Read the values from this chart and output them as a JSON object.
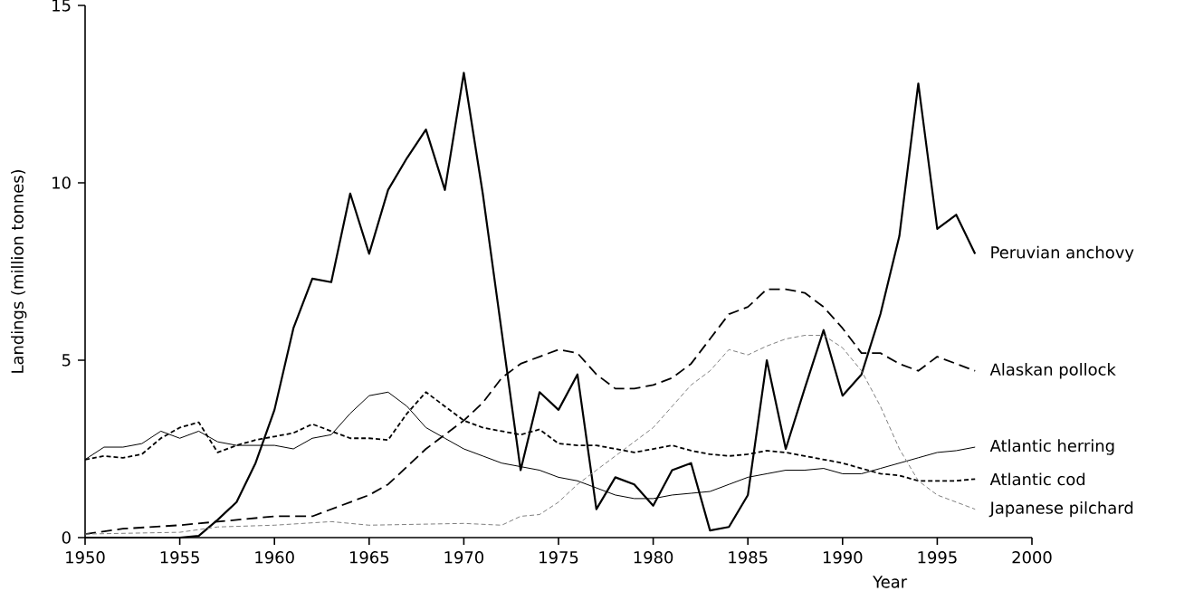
{
  "chart_data": {
    "type": "line",
    "xlabel": "Year",
    "ylabel": "Landings (million tonnes)",
    "xlim": [
      1950,
      2000
    ],
    "ylim": [
      0,
      15
    ],
    "xticks": [
      1950,
      1955,
      1960,
      1965,
      1970,
      1975,
      1980,
      1985,
      1990,
      1995,
      2000
    ],
    "yticks": [
      0,
      5,
      10,
      15
    ],
    "grid": false,
    "legend": false,
    "marker": "none",
    "series": [
      {
        "name": "Peruvian anchovy",
        "color": "#000000",
        "line_style": "solid",
        "x": [
          1950,
          1955,
          1956,
          1957,
          1958,
          1959,
          1960,
          1961,
          1962,
          1963,
          1964,
          1965,
          1966,
          1967,
          1968,
          1969,
          1970,
          1971,
          1973,
          1974,
          1975,
          1976,
          1977,
          1978,
          1979,
          1980,
          1981,
          1982,
          1983,
          1984,
          1985,
          1986,
          1987,
          1988,
          1989,
          1990,
          1991,
          1992,
          1993,
          1994,
          1995,
          1996,
          1997
        ],
        "values": [
          0.0,
          0.0,
          0.05,
          0.5,
          1.0,
          2.1,
          3.6,
          5.9,
          7.3,
          7.2,
          9.7,
          8.0,
          9.8,
          10.7,
          11.5,
          9.8,
          13.1,
          9.7,
          1.9,
          4.1,
          3.6,
          4.6,
          0.8,
          1.7,
          1.5,
          0.9,
          1.9,
          2.1,
          0.2,
          0.3,
          1.2,
          5.0,
          2.5,
          4.2,
          5.85,
          4.0,
          4.6,
          6.3,
          8.5,
          12.8,
          8.7,
          9.1,
          8.0
        ]
      },
      {
        "name": "Alaskan pollock",
        "color": "#000000",
        "line_style": "dashed",
        "x": [
          1950,
          1952,
          1955,
          1957,
          1960,
          1962,
          1964,
          1965,
          1966,
          1967,
          1968,
          1969,
          1970,
          1971,
          1972,
          1973,
          1974,
          1975,
          1976,
          1977,
          1978,
          1979,
          1980,
          1981,
          1982,
          1983,
          1984,
          1985,
          1986,
          1987,
          1988,
          1989,
          1990,
          1991,
          1992,
          1993,
          1994,
          1995,
          1996,
          1997
        ],
        "values": [
          0.1,
          0.25,
          0.35,
          0.45,
          0.6,
          0.6,
          1.0,
          1.2,
          1.5,
          2.0,
          2.5,
          2.9,
          3.3,
          3.8,
          4.5,
          4.9,
          5.1,
          5.3,
          5.2,
          4.6,
          4.2,
          4.2,
          4.3,
          4.5,
          4.9,
          5.6,
          6.3,
          6.5,
          7.0,
          7.0,
          6.9,
          6.5,
          5.9,
          5.2,
          5.2,
          4.9,
          4.7,
          5.1,
          4.9,
          4.7
        ]
      },
      {
        "name": "Atlantic herring",
        "color": "#000000",
        "line_style": "solid",
        "x": [
          1950,
          1951,
          1952,
          1953,
          1954,
          1955,
          1956,
          1957,
          1958,
          1960,
          1961,
          1962,
          1963,
          1964,
          1965,
          1966,
          1967,
          1968,
          1969,
          1970,
          1971,
          1972,
          1973,
          1974,
          1975,
          1976,
          1977,
          1978,
          1979,
          1980,
          1981,
          1982,
          1983,
          1984,
          1985,
          1986,
          1987,
          1988,
          1989,
          1990,
          1991,
          1992,
          1993,
          1994,
          1995,
          1996,
          1997
        ],
        "values": [
          2.2,
          2.55,
          2.55,
          2.65,
          3.0,
          2.8,
          3.0,
          2.7,
          2.6,
          2.6,
          2.5,
          2.8,
          2.9,
          3.5,
          4.0,
          4.1,
          3.7,
          3.1,
          2.8,
          2.5,
          2.3,
          2.1,
          2.0,
          1.9,
          1.7,
          1.6,
          1.4,
          1.2,
          1.1,
          1.1,
          1.2,
          1.25,
          1.3,
          1.5,
          1.7,
          1.8,
          1.9,
          1.9,
          1.95,
          1.8,
          1.8,
          1.95,
          2.1,
          2.25,
          2.4,
          2.45,
          2.55
        ]
      },
      {
        "name": "Atlantic cod",
        "color": "#000000",
        "line_style": "dotted",
        "x": [
          1950,
          1951,
          1952,
          1953,
          1954,
          1955,
          1956,
          1957,
          1958,
          1959,
          1960,
          1961,
          1962,
          1963,
          1964,
          1965,
          1966,
          1967,
          1968,
          1969,
          1970,
          1971,
          1972,
          1973,
          1974,
          1975,
          1976,
          1977,
          1978,
          1979,
          1980,
          1981,
          1982,
          1983,
          1984,
          1985,
          1986,
          1987,
          1988,
          1989,
          1990,
          1991,
          1992,
          1993,
          1994,
          1995,
          1996,
          1997
        ],
        "values": [
          2.2,
          2.3,
          2.25,
          2.35,
          2.8,
          3.1,
          3.25,
          2.4,
          2.6,
          2.75,
          2.85,
          2.95,
          3.2,
          3.0,
          2.8,
          2.8,
          2.75,
          3.5,
          4.1,
          3.7,
          3.3,
          3.1,
          3.0,
          2.9,
          3.05,
          2.65,
          2.6,
          2.6,
          2.5,
          2.4,
          2.5,
          2.6,
          2.45,
          2.35,
          2.3,
          2.35,
          2.45,
          2.4,
          2.3,
          2.2,
          2.1,
          1.95,
          1.8,
          1.75,
          1.6,
          1.6,
          1.6,
          1.65
        ]
      },
      {
        "name": "Japanese pilchard",
        "color": "#808080",
        "line_style": "dotted",
        "x": [
          1950,
          1955,
          1957,
          1960,
          1963,
          1965,
          1970,
          1972,
          1973,
          1974,
          1975,
          1976,
          1977,
          1978,
          1979,
          1980,
          1981,
          1982,
          1983,
          1984,
          1985,
          1986,
          1987,
          1988,
          1989,
          1990,
          1991,
          1992,
          1993,
          1994,
          1995,
          1996,
          1997
        ],
        "values": [
          0.1,
          0.15,
          0.3,
          0.35,
          0.45,
          0.35,
          0.4,
          0.35,
          0.6,
          0.65,
          1.0,
          1.5,
          1.9,
          2.3,
          2.7,
          3.1,
          3.7,
          4.3,
          4.7,
          5.3,
          5.15,
          5.4,
          5.6,
          5.7,
          5.7,
          5.35,
          4.7,
          3.7,
          2.5,
          1.6,
          1.2,
          1.0,
          0.8
        ]
      }
    ]
  }
}
